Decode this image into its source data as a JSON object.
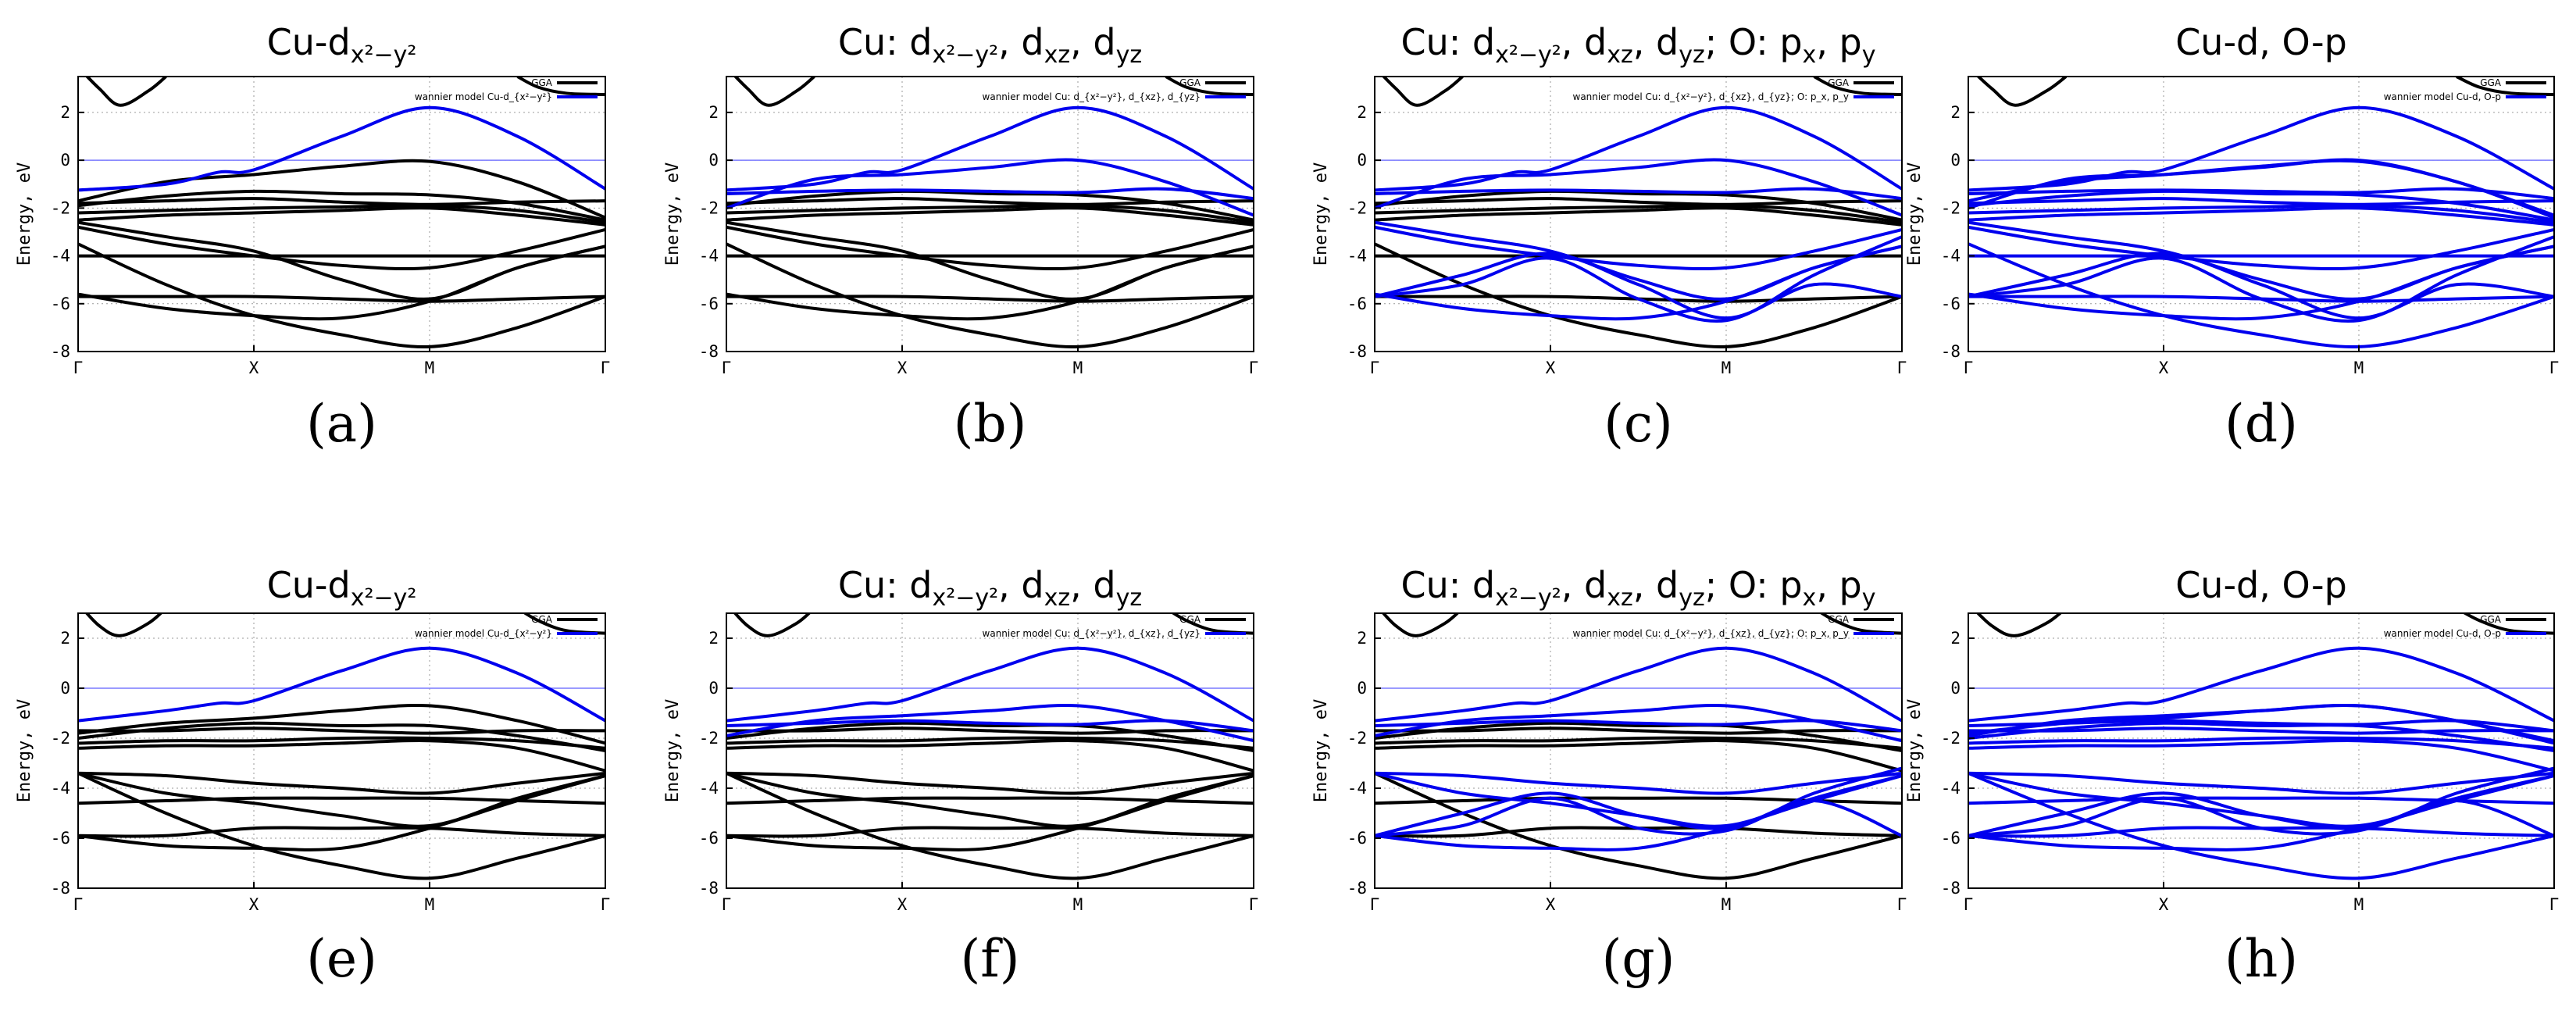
{
  "figure": {
    "panel_letters": [
      "(a)",
      "(b)",
      "(c)",
      "(d)",
      "(e)",
      "(f)",
      "(g)",
      "(h)"
    ],
    "legend_gga": "GGA",
    "legend_wannier_prefix": "wannier model",
    "colors": {
      "gga": "#000000",
      "wannier": "#0000ee",
      "grid": "#9a9a9a"
    }
  },
  "chart_data": [
    {
      "panel": "(a)",
      "type": "line",
      "title": "Cu-d_{x²−y²}",
      "title_runs": [
        [
          "Cu-d",
          ""
        ],
        [
          "x²−y²",
          "sub"
        ]
      ],
      "legend": [
        "GGA",
        "wannier model Cu-d_{x²−y²}"
      ],
      "ylabel": "Energy, eV",
      "ylim": [
        -8,
        3.5
      ],
      "yticks": [
        -8,
        -6,
        -4,
        -2,
        0,
        2
      ],
      "xticks": [
        "Γ",
        "X",
        "M",
        "Γ"
      ],
      "model": "a",
      "series": [
        {
          "name": "GGA",
          "color": "#000000"
        },
        {
          "name": "wannier model Cu-d_{x²−y²}",
          "color": "#0000ee"
        }
      ]
    },
    {
      "panel": "(b)",
      "type": "line",
      "title": "Cu: d_{x²−y²}, d_{xz}, d_{yz}",
      "title_runs": [
        [
          "Cu: d",
          ""
        ],
        [
          "x²−y²",
          "sub"
        ],
        [
          ", d",
          ""
        ],
        [
          "xz",
          "sub"
        ],
        [
          ", d",
          ""
        ],
        [
          "yz",
          "sub"
        ]
      ],
      "legend": [
        "GGA",
        "wannier model Cu: d_{x²−y²}, d_{xz}, d_{yz}"
      ],
      "ylabel": "Energy, eV",
      "ylim": [
        -8,
        3.5
      ],
      "yticks": [
        -8,
        -6,
        -4,
        -2,
        0,
        2
      ],
      "xticks": [
        "Γ",
        "X",
        "M",
        "Γ"
      ],
      "model": "b",
      "series": [
        {
          "name": "GGA",
          "color": "#000000"
        },
        {
          "name": "wannier model Cu: d_{x²−y²}, d_{xz}, d_{yz}",
          "color": "#0000ee"
        }
      ]
    },
    {
      "panel": "(c)",
      "type": "line",
      "title": "Cu: d_{x²−y²}, d_{xz}, d_{yz}; O: p_x, p_y",
      "title_runs": [
        [
          "Cu: d",
          ""
        ],
        [
          "x²−y²",
          "sub"
        ],
        [
          ", d",
          ""
        ],
        [
          "xz",
          "sub"
        ],
        [
          ", d",
          ""
        ],
        [
          "yz",
          "sub"
        ],
        [
          "; O: p",
          ""
        ],
        [
          "x",
          "sub"
        ],
        [
          ", p",
          ""
        ],
        [
          "y",
          "sub"
        ]
      ],
      "legend": [
        "GGA",
        "wannier model Cu: d_{x²−y²}, d_{xz}, d_{yz}; O: p_x, p_y"
      ],
      "ylabel": "Energy, eV",
      "ylim": [
        -8,
        3.5
      ],
      "yticks": [
        -8,
        -6,
        -4,
        -2,
        0,
        2
      ],
      "xticks": [
        "Γ",
        "X",
        "M",
        "Γ"
      ],
      "model": "c",
      "series": [
        {
          "name": "GGA",
          "color": "#000000"
        },
        {
          "name": "wannier model Cu: d_{x²−y²}, d_{xz}, d_{yz}; O: p_x, p_y",
          "color": "#0000ee"
        }
      ]
    },
    {
      "panel": "(d)",
      "type": "line",
      "title": "Cu-d, O-p",
      "title_runs": [
        [
          "Cu-d, O-p",
          ""
        ]
      ],
      "legend": [
        "GGA",
        "wannier model Cu-d, O-p"
      ],
      "ylabel": "Energy, eV",
      "ylim": [
        -8,
        3.5
      ],
      "yticks": [
        -8,
        -6,
        -4,
        -2,
        0,
        2
      ],
      "xticks": [
        "Γ",
        "X",
        "M",
        "Γ"
      ],
      "model": "d",
      "series": [
        {
          "name": "GGA",
          "color": "#000000"
        },
        {
          "name": "wannier model Cu-d, O-p",
          "color": "#0000ee"
        }
      ]
    },
    {
      "panel": "(e)",
      "type": "line",
      "title": "Cu-d_{x²−y²}",
      "title_runs": [
        [
          "Cu-d",
          ""
        ],
        [
          "x²−y²",
          "sub"
        ]
      ],
      "legend": [
        "GGA",
        "wannier model Cu-d_{x²−y²}"
      ],
      "ylabel": "Energy, eV",
      "ylim": [
        -8,
        3
      ],
      "yticks": [
        -8,
        -6,
        -4,
        -2,
        0,
        2
      ],
      "xticks": [
        "Γ",
        "X",
        "M",
        "Γ"
      ],
      "model": "a",
      "series": [
        {
          "name": "GGA",
          "color": "#000000"
        },
        {
          "name": "wannier model Cu-d_{x²−y²}",
          "color": "#0000ee"
        }
      ]
    },
    {
      "panel": "(f)",
      "type": "line",
      "title": "Cu: d_{x²−y²}, d_{xz}, d_{yz}",
      "title_runs": [
        [
          "Cu: d",
          ""
        ],
        [
          "x²−y²",
          "sub"
        ],
        [
          ", d",
          ""
        ],
        [
          "xz",
          "sub"
        ],
        [
          ", d",
          ""
        ],
        [
          "yz",
          "sub"
        ]
      ],
      "legend": [
        "GGA",
        "wannier model Cu: d_{x²−y²}, d_{xz}, d_{yz}"
      ],
      "ylabel": "Energy, eV",
      "ylim": [
        -8,
        3
      ],
      "yticks": [
        -8,
        -6,
        -4,
        -2,
        0,
        2
      ],
      "xticks": [
        "Γ",
        "X",
        "M",
        "Γ"
      ],
      "model": "b",
      "series": [
        {
          "name": "GGA",
          "color": "#000000"
        },
        {
          "name": "wannier model Cu: d_{x²−y²}, d_{xz}, d_{yz}",
          "color": "#0000ee"
        }
      ]
    },
    {
      "panel": "(g)",
      "type": "line",
      "title": "Cu: d_{x²−y²}, d_{xz}, d_{yz}; O: p_x, p_y",
      "title_runs": [
        [
          "Cu: d",
          ""
        ],
        [
          "x²−y²",
          "sub"
        ],
        [
          ", d",
          ""
        ],
        [
          "xz",
          "sub"
        ],
        [
          ", d",
          ""
        ],
        [
          "yz",
          "sub"
        ],
        [
          "; O: p",
          ""
        ],
        [
          "x",
          "sub"
        ],
        [
          ", p",
          ""
        ],
        [
          "y",
          "sub"
        ]
      ],
      "legend": [
        "GGA",
        "wannier model Cu: d_{x²−y²}, d_{xz}, d_{yz}; O: p_x, p_y"
      ],
      "ylabel": "Energy, eV",
      "ylim": [
        -8,
        3
      ],
      "yticks": [
        -8,
        -6,
        -4,
        -2,
        0,
        2
      ],
      "xticks": [
        "Γ",
        "X",
        "M",
        "Γ"
      ],
      "model": "c",
      "series": [
        {
          "name": "GGA",
          "color": "#000000"
        },
        {
          "name": "wannier model Cu: d_{x²−y²}, d_{xz}, d_{yz}; O: p_x, p_y",
          "color": "#0000ee"
        }
      ]
    },
    {
      "panel": "(h)",
      "type": "line",
      "title": "Cu-d, O-p",
      "title_runs": [
        [
          "Cu-d, O-p",
          ""
        ]
      ],
      "legend": [
        "GGA",
        "wannier model Cu-d, O-p"
      ],
      "ylabel": "Energy, eV",
      "ylim": [
        -8,
        3
      ],
      "yticks": [
        -8,
        -6,
        -4,
        -2,
        0,
        2
      ],
      "xticks": [
        "Γ",
        "X",
        "M",
        "Γ"
      ],
      "model": "d",
      "series": [
        {
          "name": "GGA",
          "color": "#000000"
        },
        {
          "name": "wannier model Cu-d, O-p",
          "color": "#0000ee"
        }
      ]
    }
  ],
  "bands_top": {
    "topband": [
      [
        0,
        3.9
      ],
      [
        0.12,
        3.0
      ],
      [
        0.24,
        2.3
      ],
      [
        0.4,
        2.9
      ],
      [
        0.5,
        3.5
      ]
    ],
    "topband_r": [
      [
        2.5,
        3.5
      ],
      [
        2.62,
        3.05
      ],
      [
        2.78,
        2.8
      ],
      [
        3.0,
        2.75
      ]
    ],
    "xy": [
      [
        0,
        -1.25
      ],
      [
        0.5,
        -1.0
      ],
      [
        0.8,
        -0.5
      ],
      [
        1.0,
        -0.4
      ],
      [
        1.5,
        1.0
      ],
      [
        2.0,
        2.2
      ],
      [
        2.5,
        1.0
      ],
      [
        3.0,
        -1.2
      ]
    ],
    "xz1": [
      [
        0,
        -1.4
      ],
      [
        0.5,
        -1.3
      ],
      [
        1.0,
        -1.25
      ],
      [
        1.5,
        -1.3
      ],
      [
        2.0,
        -1.35
      ],
      [
        2.5,
        -1.2
      ],
      [
        3.0,
        -1.6
      ]
    ],
    "xz2": [
      [
        0,
        -2.0
      ],
      [
        0.5,
        -0.8
      ],
      [
        1.0,
        -0.6
      ],
      [
        1.5,
        -0.3
      ],
      [
        2.0,
        0.0
      ],
      [
        2.5,
        -0.9
      ],
      [
        3.0,
        -2.3
      ]
    ],
    "g1": [
      [
        0,
        -1.7
      ],
      [
        0.5,
        -0.9
      ],
      [
        1.0,
        -0.6
      ],
      [
        1.5,
        -0.25
      ],
      [
        2.0,
        -0.05
      ],
      [
        2.5,
        -0.9
      ],
      [
        3.0,
        -2.4
      ]
    ],
    "g2": [
      [
        0,
        -1.8
      ],
      [
        0.5,
        -1.7
      ],
      [
        1.0,
        -1.6
      ],
      [
        1.5,
        -1.75
      ],
      [
        2.0,
        -1.85
      ],
      [
        2.5,
        -1.75
      ],
      [
        3.0,
        -1.7
      ]
    ],
    "g3": [
      [
        0,
        -1.9
      ],
      [
        0.5,
        -1.5
      ],
      [
        1.0,
        -1.3
      ],
      [
        1.5,
        -1.4
      ],
      [
        2.0,
        -1.45
      ],
      [
        2.5,
        -1.8
      ],
      [
        3.0,
        -2.5
      ]
    ],
    "g4": [
      [
        0,
        -2.2
      ],
      [
        0.5,
        -2.1
      ],
      [
        1.0,
        -2.0
      ],
      [
        1.5,
        -1.95
      ],
      [
        2.0,
        -1.9
      ],
      [
        2.5,
        -2.1
      ],
      [
        3.0,
        -2.6
      ]
    ],
    "g5": [
      [
        0,
        -2.5
      ],
      [
        0.5,
        -2.3
      ],
      [
        1.0,
        -2.2
      ],
      [
        1.5,
        -2.1
      ],
      [
        2.0,
        -2.0
      ],
      [
        2.5,
        -2.3
      ],
      [
        3.0,
        -2.7
      ]
    ],
    "g6": [
      [
        0,
        -2.8
      ],
      [
        0.5,
        -3.5
      ],
      [
        1.0,
        -4.0
      ],
      [
        1.5,
        -4.4
      ],
      [
        2.0,
        -4.5
      ],
      [
        2.5,
        -3.8
      ],
      [
        3.0,
        -2.9
      ]
    ],
    "g7": [
      [
        0,
        -2.6
      ],
      [
        0.5,
        -3.2
      ],
      [
        1.0,
        -3.8
      ],
      [
        1.5,
        -5.0
      ],
      [
        2.0,
        -5.8
      ],
      [
        2.5,
        -4.5
      ],
      [
        3.0,
        -3.6
      ]
    ],
    "g8": [
      [
        0,
        -4.0
      ],
      [
        0.5,
        -4.0
      ],
      [
        1.0,
        -4.0
      ],
      [
        1.5,
        -4.0
      ],
      [
        2.0,
        -4.0
      ],
      [
        2.5,
        -4.0
      ],
      [
        3.0,
        -4.0
      ]
    ],
    "g9": [
      [
        0,
        -5.7
      ],
      [
        0.5,
        -5.7
      ],
      [
        1.0,
        -5.7
      ],
      [
        1.5,
        -5.8
      ],
      [
        2.0,
        -5.9
      ],
      [
        2.5,
        -5.8
      ],
      [
        3.0,
        -5.7
      ]
    ],
    "g10": [
      [
        0,
        -3.5
      ],
      [
        0.5,
        -5.2
      ],
      [
        1.0,
        -6.5
      ],
      [
        1.5,
        -7.3
      ],
      [
        2.0,
        -7.8
      ],
      [
        2.5,
        -7.0
      ],
      [
        3.0,
        -5.7
      ]
    ],
    "g11": [
      [
        0,
        -5.6
      ],
      [
        0.5,
        -6.2
      ],
      [
        1.0,
        -6.5
      ],
      [
        1.5,
        -6.6
      ],
      [
        2.0,
        -5.9
      ],
      [
        2.5,
        -4.5
      ],
      [
        3.0,
        -3.6
      ]
    ],
    "p1": [
      [
        0,
        -5.7
      ],
      [
        0.5,
        -4.8
      ],
      [
        1.0,
        -3.9
      ],
      [
        1.5,
        -5.2
      ],
      [
        2.0,
        -6.6
      ],
      [
        2.5,
        -5.2
      ],
      [
        3.0,
        -5.7
      ]
    ],
    "p2": [
      [
        0,
        -5.7
      ],
      [
        0.5,
        -5.2
      ],
      [
        1.0,
        -4.1
      ],
      [
        1.5,
        -5.8
      ],
      [
        2.0,
        -6.7
      ],
      [
        2.5,
        -4.8
      ],
      [
        3.0,
        -3.2
      ]
    ]
  },
  "bands_bottom": {
    "topband": [
      [
        0,
        3.4
      ],
      [
        0.12,
        2.5
      ],
      [
        0.24,
        2.1
      ],
      [
        0.4,
        2.6
      ],
      [
        0.5,
        3.2
      ]
    ],
    "topband_r": [
      [
        2.5,
        3.2
      ],
      [
        2.62,
        2.7
      ],
      [
        2.78,
        2.3
      ],
      [
        3.0,
        2.2
      ]
    ],
    "xy": [
      [
        0,
        -1.3
      ],
      [
        0.5,
        -0.9
      ],
      [
        0.8,
        -0.6
      ],
      [
        1.0,
        -0.5
      ],
      [
        1.5,
        0.7
      ],
      [
        2.0,
        1.6
      ],
      [
        2.5,
        0.6
      ],
      [
        3.0,
        -1.3
      ]
    ],
    "xz1": [
      [
        0,
        -1.5
      ],
      [
        0.5,
        -1.4
      ],
      [
        1.0,
        -1.3
      ],
      [
        1.5,
        -1.4
      ],
      [
        2.0,
        -1.45
      ],
      [
        2.5,
        -1.3
      ],
      [
        3.0,
        -1.7
      ]
    ],
    "xz2": [
      [
        0,
        -1.9
      ],
      [
        0.5,
        -1.3
      ],
      [
        1.0,
        -1.1
      ],
      [
        1.5,
        -0.9
      ],
      [
        2.0,
        -0.7
      ],
      [
        2.5,
        -1.3
      ],
      [
        3.0,
        -2.1
      ]
    ],
    "g1": [
      [
        0,
        -1.8
      ],
      [
        0.5,
        -1.4
      ],
      [
        1.0,
        -1.2
      ],
      [
        1.5,
        -0.9
      ],
      [
        2.0,
        -0.7
      ],
      [
        2.5,
        -1.3
      ],
      [
        3.0,
        -2.2
      ]
    ],
    "g2": [
      [
        0,
        -1.7
      ],
      [
        0.5,
        -1.7
      ],
      [
        1.0,
        -1.6
      ],
      [
        1.5,
        -1.7
      ],
      [
        2.0,
        -1.8
      ],
      [
        2.5,
        -1.7
      ],
      [
        3.0,
        -1.7
      ]
    ],
    "g3": [
      [
        0,
        -2.0
      ],
      [
        0.5,
        -1.6
      ],
      [
        1.0,
        -1.4
      ],
      [
        1.5,
        -1.5
      ],
      [
        2.0,
        -1.5
      ],
      [
        2.5,
        -1.9
      ],
      [
        3.0,
        -2.5
      ]
    ],
    "g4": [
      [
        0,
        -2.2
      ],
      [
        0.5,
        -2.1
      ],
      [
        1.0,
        -2.1
      ],
      [
        1.5,
        -2.0
      ],
      [
        2.0,
        -2.0
      ],
      [
        2.5,
        -2.1
      ],
      [
        3.0,
        -2.4
      ]
    ],
    "g5": [
      [
        0,
        -2.4
      ],
      [
        0.5,
        -2.3
      ],
      [
        1.0,
        -2.3
      ],
      [
        1.5,
        -2.2
      ],
      [
        2.0,
        -2.1
      ],
      [
        2.5,
        -2.4
      ],
      [
        3.0,
        -3.3
      ]
    ],
    "g6": [
      [
        0,
        -3.4
      ],
      [
        0.5,
        -3.5
      ],
      [
        1.0,
        -3.8
      ],
      [
        1.5,
        -4.0
      ],
      [
        2.0,
        -4.2
      ],
      [
        2.5,
        -3.8
      ],
      [
        3.0,
        -3.4
      ]
    ],
    "g7": [
      [
        0,
        -3.4
      ],
      [
        0.5,
        -4.2
      ],
      [
        1.0,
        -4.6
      ],
      [
        1.5,
        -5.1
      ],
      [
        2.0,
        -5.5
      ],
      [
        2.5,
        -4.4
      ],
      [
        3.0,
        -3.5
      ]
    ],
    "g8": [
      [
        0,
        -4.6
      ],
      [
        0.5,
        -4.5
      ],
      [
        1.0,
        -4.4
      ],
      [
        1.5,
        -4.4
      ],
      [
        2.0,
        -4.4
      ],
      [
        2.5,
        -4.5
      ],
      [
        3.0,
        -4.6
      ]
    ],
    "g9": [
      [
        0,
        -5.9
      ],
      [
        0.5,
        -5.9
      ],
      [
        1.0,
        -5.6
      ],
      [
        1.5,
        -5.6
      ],
      [
        2.0,
        -5.6
      ],
      [
        2.5,
        -5.8
      ],
      [
        3.0,
        -5.9
      ]
    ],
    "g10": [
      [
        0,
        -3.4
      ],
      [
        0.5,
        -5.0
      ],
      [
        1.0,
        -6.3
      ],
      [
        1.5,
        -7.1
      ],
      [
        2.0,
        -7.6
      ],
      [
        2.5,
        -6.8
      ],
      [
        3.0,
        -5.9
      ]
    ],
    "g11": [
      [
        0,
        -5.9
      ],
      [
        0.5,
        -6.3
      ],
      [
        1.0,
        -6.4
      ],
      [
        1.5,
        -6.4
      ],
      [
        2.0,
        -5.6
      ],
      [
        2.5,
        -4.5
      ],
      [
        3.0,
        -3.5
      ]
    ],
    "p1": [
      [
        0,
        -5.9
      ],
      [
        0.5,
        -5.0
      ],
      [
        1.0,
        -4.2
      ],
      [
        1.5,
        -5.1
      ],
      [
        2.0,
        -5.6
      ],
      [
        2.5,
        -4.5
      ],
      [
        3.0,
        -5.9
      ]
    ],
    "p2": [
      [
        0,
        -5.9
      ],
      [
        0.5,
        -5.5
      ],
      [
        1.0,
        -4.4
      ],
      [
        1.5,
        -5.6
      ],
      [
        2.0,
        -5.7
      ],
      [
        2.5,
        -4.2
      ],
      [
        3.0,
        -3.2
      ]
    ]
  }
}
